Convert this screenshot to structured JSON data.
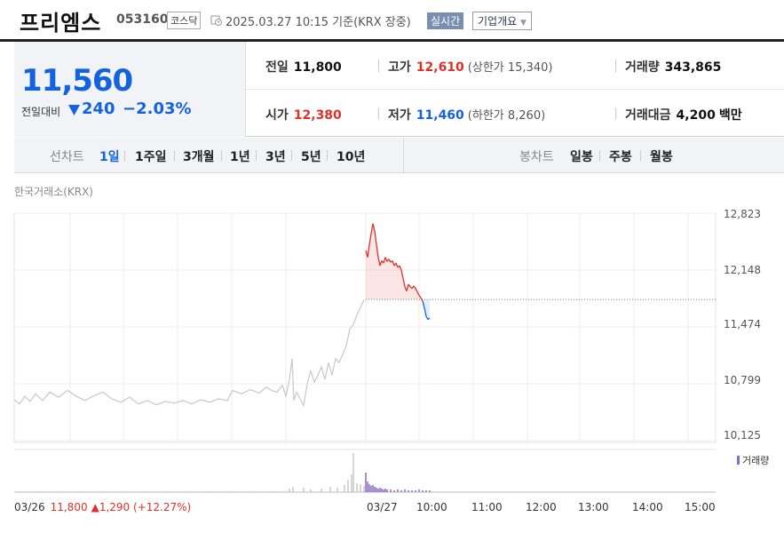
{
  "header": {
    "name": "프리엠스",
    "code": "053160",
    "market": "코스닥",
    "datetime": "2025.03.27 10:15 기준(KRX 장중)",
    "realtime_label": "실시간",
    "company_info_label": "기업개요"
  },
  "price": {
    "current": "11,560",
    "change_label": "전일대비",
    "change_value": "240",
    "change_pct": "−2.03%"
  },
  "stats": {
    "prev_close_label": "전일",
    "prev_close": "11,800",
    "high_label": "고가",
    "high": "12,610",
    "upper_limit": "(상한가 15,340)",
    "volume_label": "거래량",
    "volume": "343,865",
    "open_label": "시가",
    "open": "12,380",
    "low_label": "저가",
    "low": "11,460",
    "lower_limit": "(하한가 8,260)",
    "amount_label": "거래대금",
    "amount": "4,200",
    "amount_unit": "백만"
  },
  "tabs": {
    "line_label": "선차트",
    "periods": [
      "1일",
      "1주일",
      "3개월",
      "1년",
      "3년",
      "5년",
      "10년"
    ],
    "candle_label": "봉차트",
    "candles": [
      "일봉",
      "주봉",
      "월봉"
    ]
  },
  "chart_data": {
    "type": "line",
    "exchange_label": "한국거래소(KRX)",
    "y_ticks": [
      "12,823",
      "12,148",
      "11,474",
      "10,799",
      "10,125"
    ],
    "ylim": [
      10125,
      12823
    ],
    "prev_close": 11800,
    "x_ticks": [
      "03/26",
      "03/27",
      "10:00",
      "11:00",
      "12:00",
      "13:00",
      "14:00",
      "15:00"
    ],
    "volume_label": "거래량",
    "prev_day_summary": {
      "date": "03/26",
      "close": "11,800",
      "change": "▲1,290",
      "pct": "(+12.27%)"
    },
    "colors": {
      "up": "#e0302a",
      "down": "#1362e0",
      "prev_day": "#c8c8c8",
      "volume": "#8a6fc0"
    }
  }
}
